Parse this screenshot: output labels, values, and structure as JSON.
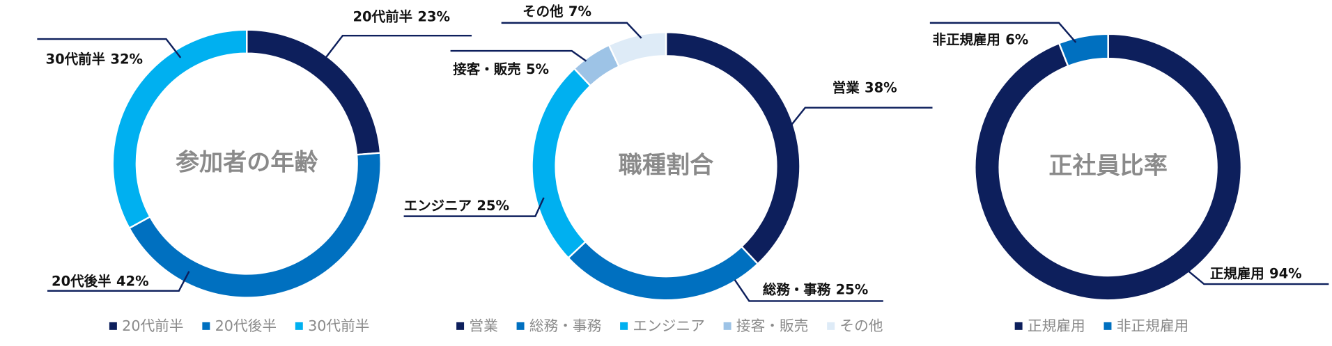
{
  "chart_data": [
    {
      "type": "pie",
      "title": "参加者の年齢",
      "categories": [
        "20代前半",
        "20代後半",
        "30代前半"
      ],
      "values": [
        23,
        42,
        32
      ],
      "value_labels": [
        "23%",
        "42%",
        "32%"
      ],
      "colors": [
        "#0d1f5c",
        "#0070c0",
        "#00b0f0"
      ],
      "donut": true
    },
    {
      "type": "pie",
      "title": "職種割合",
      "categories": [
        "営業",
        "総務・事務",
        "エンジニア",
        "接客・販売",
        "その他"
      ],
      "values": [
        38,
        25,
        25,
        5,
        7
      ],
      "value_labels": [
        "38%",
        "25%",
        "25%",
        "5%",
        "7%"
      ],
      "colors": [
        "#0d1f5c",
        "#0070c0",
        "#00b0f0",
        "#9dc3e6",
        "#deebf7"
      ],
      "donut": true
    },
    {
      "type": "pie",
      "title": "正社員比率",
      "categories": [
        "正規雇用",
        "非正規雇用"
      ],
      "values": [
        94,
        6
      ],
      "value_labels": [
        "94%",
        "6%"
      ],
      "colors": [
        "#0d1f5c",
        "#0070c0"
      ],
      "donut": true
    }
  ]
}
